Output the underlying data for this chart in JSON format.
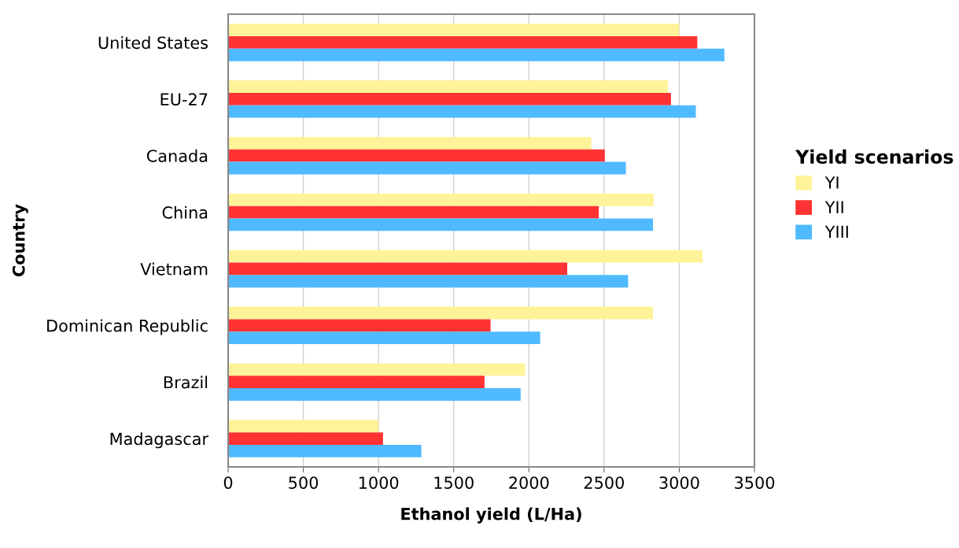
{
  "chart_data": {
    "type": "bar",
    "orientation": "horizontal",
    "xlabel": "Ethanol yield (L/Ha)",
    "ylabel": "Country",
    "legend_title": "Yield scenarios",
    "categories": [
      "United States",
      "EU-27",
      "Canada",
      "China",
      "Vietnam",
      "Dominican Republic",
      "Brazil",
      "Madagascar"
    ],
    "series": [
      {
        "name": "YI",
        "color": "#fff399",
        "values": [
          3000,
          2925,
          2415,
          2830,
          3155,
          2825,
          1975,
          1000
        ]
      },
      {
        "name": "YII",
        "color": "#ff3333",
        "values": [
          3120,
          2945,
          2505,
          2465,
          2255,
          1745,
          1705,
          1030
        ]
      },
      {
        "name": "YIII",
        "color": "#4fbaff",
        "values": [
          3300,
          3110,
          2645,
          2825,
          2660,
          2075,
          1945,
          1285
        ]
      }
    ],
    "xlim": [
      0,
      3500
    ],
    "xticks": [
      0,
      500,
      1000,
      1500,
      2000,
      2500,
      3000,
      3500
    ],
    "grid": "x",
    "legend": "right"
  }
}
